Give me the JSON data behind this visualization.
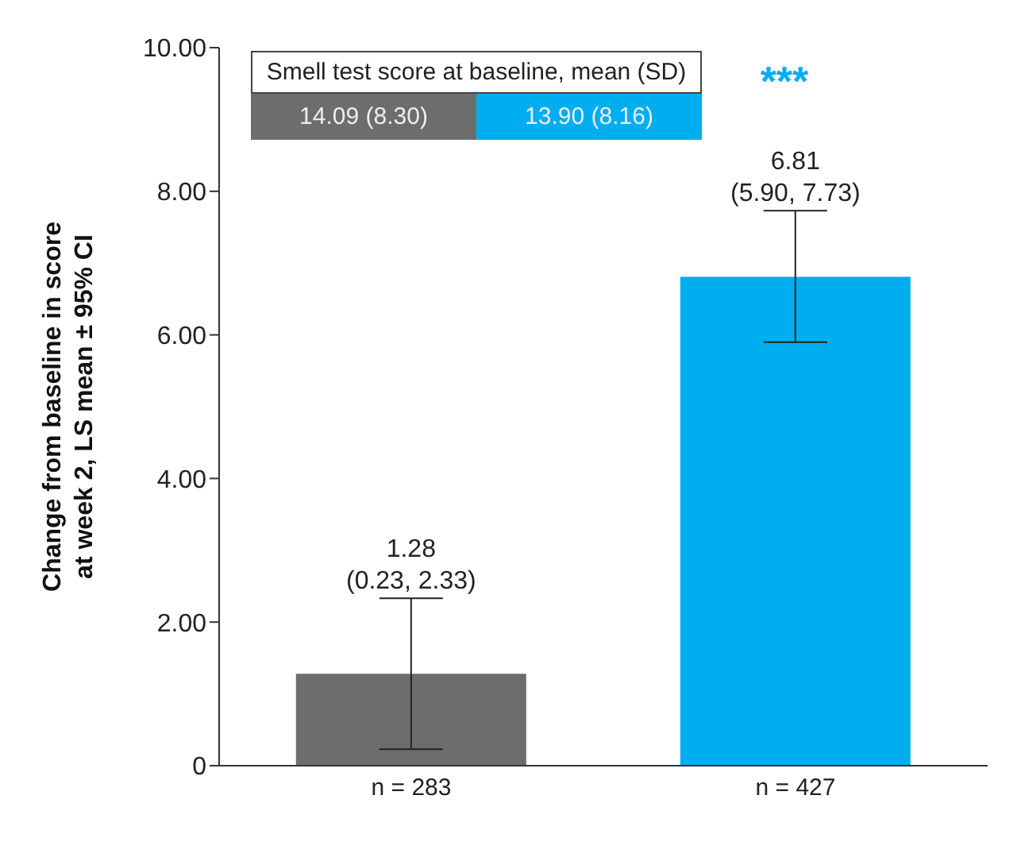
{
  "chart_data": {
    "type": "bar",
    "ylabel": "Change from baseline in score at week 2, LS mean ± 95% CI",
    "categories": [
      "n = 283",
      "n = 427"
    ],
    "values": [
      1.28,
      6.81
    ],
    "colors": [
      "#6d6d6d",
      "#00aeef"
    ],
    "errors": [
      [
        0.23,
        2.33
      ],
      [
        5.9,
        7.73
      ]
    ],
    "value_labels": [
      "1.28\n(0.23, 2.33)",
      "6.81\n(5.90, 7.73)"
    ],
    "ylim": [
      0,
      10
    ],
    "yticks": [
      0,
      {
        "value": 2,
        "label": "2.00"
      },
      {
        "value": 4,
        "label": "4.00"
      },
      {
        "value": 6,
        "label": "6.00"
      },
      {
        "value": 8,
        "label": "8.00"
      },
      {
        "value": 10,
        "label": "10.00"
      }
    ],
    "grid": false,
    "legend": false,
    "annotations": [
      "***",
      "Smell test score at baseline, mean (SD)",
      "14.09 (8.30)",
      "13.90 (8.16)"
    ]
  }
}
